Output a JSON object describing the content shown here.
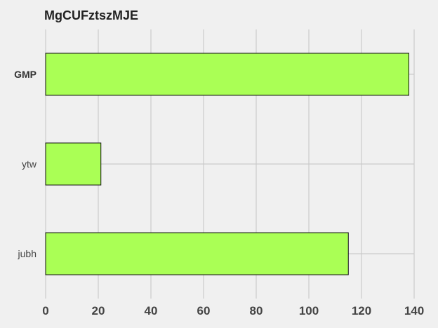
{
  "chart_data": {
    "type": "bar",
    "orientation": "horizontal",
    "title": "MgCUFztszMJE",
    "xlabel": "",
    "ylabel": "",
    "categories": [
      "GMP",
      "ytw",
      "jubh"
    ],
    "values": [
      138,
      21,
      115
    ],
    "xlim": [
      0,
      140
    ],
    "xticks": [
      0,
      20,
      40,
      60,
      80,
      100,
      120,
      140
    ],
    "grid": true,
    "legend": "none"
  },
  "colors": {
    "background": "#f0f0f0",
    "bar_fill": "#aaff55",
    "bar_stroke": "#111111",
    "grid": "#cbcbcb"
  }
}
